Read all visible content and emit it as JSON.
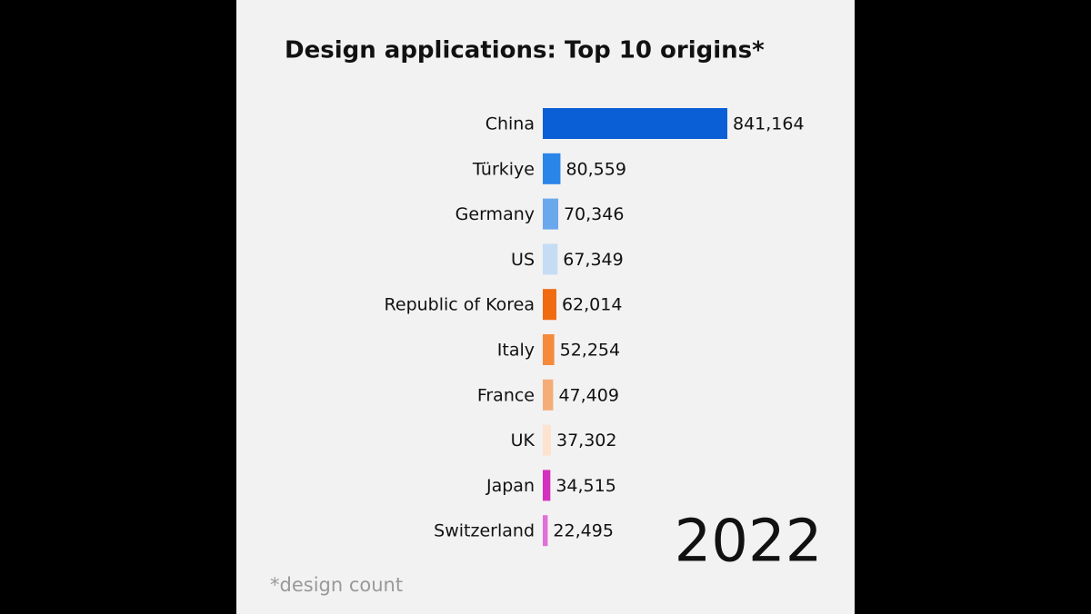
{
  "chart_data": {
    "type": "bar",
    "orientation": "horizontal",
    "title": "Design applications: Top 10 origins*",
    "categories": [
      "China",
      "Türkiye",
      "Germany",
      "US",
      "Republic of Korea",
      "Italy",
      "France",
      "UK",
      "Japan",
      "Switzerland"
    ],
    "values": [
      841164,
      80559,
      70346,
      67349,
      62014,
      52254,
      47409,
      37302,
      34515,
      22495
    ],
    "value_labels": [
      "841,164",
      "80,559",
      "70,346",
      "67,349",
      "62,014",
      "52,254",
      "47,409",
      "37,302",
      "34,515",
      "22,495"
    ],
    "colors": [
      "#0a5fd6",
      "#2a85e8",
      "#6aa8ec",
      "#c5dcf5",
      "#f06a10",
      "#f58a3a",
      "#f5ad78",
      "#fbe3d0",
      "#d42fbf",
      "#e070d8"
    ],
    "annotation": "2022",
    "footnote": "*design count"
  }
}
